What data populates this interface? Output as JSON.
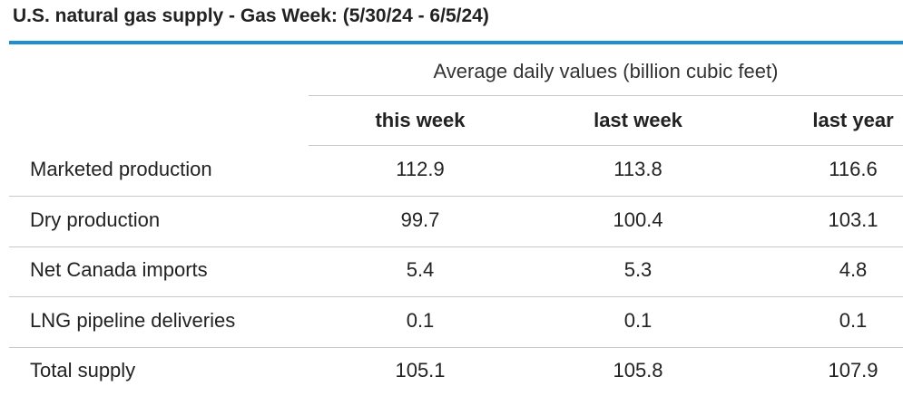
{
  "header": {
    "title": "U.S. natural gas supply - Gas Week: (5/30/24 - 6/5/24)"
  },
  "table": {
    "group_header": "Average daily values (billion cubic feet)",
    "columns": [
      "this week",
      "last week",
      "last year"
    ],
    "rows": [
      [
        "Marketed production",
        "112.9",
        "113.8",
        "116.6"
      ],
      [
        "Dry production",
        "99.7",
        "100.4",
        "103.1"
      ],
      [
        "Net Canada imports",
        "5.4",
        "5.3",
        "4.8"
      ],
      [
        "LNG pipeline deliveries",
        "0.1",
        "0.1",
        "0.1"
      ],
      [
        "Total supply",
        "105.1",
        "105.8",
        "107.9"
      ]
    ]
  }
}
